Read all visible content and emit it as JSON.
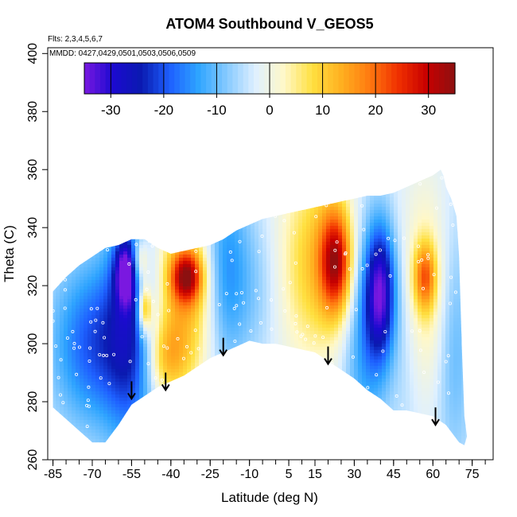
{
  "chart_data": {
    "type": "heatmap",
    "title": "ATOM4 Southbound V_GEOS5",
    "annotations": [
      "Flts: 2,3,4,5,6,7",
      "MMDD: 0427,0429,0501,0503,0506,0509"
    ],
    "xlabel": "Latitude (deg N)",
    "ylabel": "Theta (C)",
    "xlim": [
      -87,
      83
    ],
    "ylim": [
      260,
      402
    ],
    "x_ticks": [
      -85,
      -70,
      -55,
      -40,
      -25,
      -10,
      5,
      15,
      30,
      45,
      60,
      75
    ],
    "x_tick_labels": [
      "-85",
      "-70",
      "-55",
      "-40",
      "-25",
      "-10",
      "5",
      "15",
      "30",
      "45",
      "60",
      "75"
    ],
    "y_ticks": [
      260,
      280,
      300,
      320,
      340,
      360,
      380,
      400
    ],
    "y_tick_labels": [
      "260",
      "280",
      "300",
      "320",
      "340",
      "360",
      "380",
      "400"
    ],
    "colorbar": {
      "ticks": [
        -30,
        -20,
        -10,
        0,
        10,
        20,
        30
      ],
      "tick_labels": [
        "-30",
        "-20",
        "-10",
        "0",
        "10",
        "20",
        "30"
      ],
      "range": [
        -35,
        35
      ],
      "colors": [
        "#7a18e0",
        "#1c0ad0",
        "#0a1ab0",
        "#1e60ff",
        "#2ea4ff",
        "#86caff",
        "#dff0ff",
        "#fff8c8",
        "#ffe040",
        "#ffb020",
        "#ff7a10",
        "#f03000",
        "#c80000",
        "#8c1010"
      ]
    },
    "arrows_latitude": [
      -55,
      -42,
      -20,
      20,
      61
    ],
    "arrows_theta_tip": [
      281,
      284,
      296,
      293,
      272
    ],
    "upper_boundary": [
      [
        -85,
        318
      ],
      [
        -80,
        323
      ],
      [
        -75,
        327
      ],
      [
        -70,
        330
      ],
      [
        -65,
        333
      ],
      [
        -60,
        334
      ],
      [
        -55,
        336
      ],
      [
        -50,
        336
      ],
      [
        -45,
        333
      ],
      [
        -40,
        331
      ],
      [
        -35,
        332
      ],
      [
        -30,
        333
      ],
      [
        -25,
        334
      ],
      [
        -20,
        336
      ],
      [
        -15,
        339
      ],
      [
        -10,
        341
      ],
      [
        -5,
        343
      ],
      [
        0,
        344
      ],
      [
        5,
        345
      ],
      [
        10,
        346
      ],
      [
        15,
        347
      ],
      [
        20,
        348
      ],
      [
        25,
        349
      ],
      [
        30,
        350
      ],
      [
        35,
        351
      ],
      [
        40,
        351
      ],
      [
        45,
        352
      ],
      [
        50,
        354
      ],
      [
        55,
        356
      ],
      [
        60,
        358
      ],
      [
        63,
        360
      ],
      [
        64,
        358
      ],
      [
        65,
        354
      ],
      [
        67,
        350
      ],
      [
        69,
        344
      ],
      [
        70,
        330
      ],
      [
        71,
        300
      ],
      [
        72,
        275
      ],
      [
        73,
        268
      ],
      [
        72,
        265
      ]
    ],
    "lower_boundary": [
      [
        -85,
        278
      ],
      [
        -80,
        274
      ],
      [
        -75,
        270
      ],
      [
        -70,
        266
      ],
      [
        -65,
        266
      ],
      [
        -60,
        272
      ],
      [
        -55,
        279
      ],
      [
        -50,
        282
      ],
      [
        -45,
        285
      ],
      [
        -40,
        287
      ],
      [
        -35,
        289
      ],
      [
        -30,
        292
      ],
      [
        -25,
        295
      ],
      [
        -20,
        297
      ],
      [
        -15,
        299
      ],
      [
        -10,
        301
      ],
      [
        -5,
        300
      ],
      [
        0,
        300
      ],
      [
        5,
        299
      ],
      [
        10,
        298
      ],
      [
        15,
        297
      ],
      [
        20,
        294
      ],
      [
        25,
        291
      ],
      [
        30,
        288
      ],
      [
        35,
        284
      ],
      [
        40,
        281
      ],
      [
        45,
        277
      ],
      [
        50,
        277
      ],
      [
        55,
        276
      ],
      [
        60,
        275
      ],
      [
        65,
        272
      ],
      [
        70,
        266
      ],
      [
        72,
        265
      ]
    ],
    "anomalies": [
      {
        "lat": -55,
        "theta": 305,
        "value": -20,
        "sx": 7,
        "sy": 28
      },
      {
        "lat": -68,
        "theta": 300,
        "value": -12,
        "sx": 9,
        "sy": 20
      },
      {
        "lat": -57,
        "theta": 325,
        "value": -24,
        "sx": 3,
        "sy": 8
      },
      {
        "lat": -78,
        "theta": 300,
        "value": -6,
        "sx": 10,
        "sy": 20
      },
      {
        "lat": -34,
        "theta": 318,
        "value": 16,
        "sx": 10,
        "sy": 22
      },
      {
        "lat": -34,
        "theta": 323,
        "value": 26,
        "sx": 4,
        "sy": 6
      },
      {
        "lat": -50,
        "theta": 312,
        "value": 22,
        "sx": 2,
        "sy": 6
      },
      {
        "lat": -52,
        "theta": 328,
        "value": 16,
        "sx": 2.5,
        "sy": 6
      },
      {
        "lat": -42,
        "theta": 295,
        "value": 12,
        "sx": 6,
        "sy": 10
      },
      {
        "lat": -20,
        "theta": 325,
        "value": -14,
        "sx": 6,
        "sy": 24
      },
      {
        "lat": -8,
        "theta": 320,
        "value": -6,
        "sx": 8,
        "sy": 20
      },
      {
        "lat": 8,
        "theta": 325,
        "value": 6,
        "sx": 10,
        "sy": 25
      },
      {
        "lat": 23,
        "theta": 328,
        "value": 26,
        "sx": 4,
        "sy": 12
      },
      {
        "lat": 20,
        "theta": 330,
        "value": 12,
        "sx": 9,
        "sy": 22
      },
      {
        "lat": 40,
        "theta": 318,
        "value": -27,
        "sx": 4,
        "sy": 16
      },
      {
        "lat": 34,
        "theta": 305,
        "value": -12,
        "sx": 6,
        "sy": 28
      },
      {
        "lat": 57,
        "theta": 323,
        "value": 18,
        "sx": 3,
        "sy": 8
      },
      {
        "lat": 57,
        "theta": 318,
        "value": 9,
        "sx": 7,
        "sy": 26
      },
      {
        "lat": 68,
        "theta": 300,
        "value": -8,
        "sx": 5,
        "sy": 30
      },
      {
        "lat": 50,
        "theta": 300,
        "value": -4,
        "sx": 5,
        "sy": 25
      }
    ]
  }
}
